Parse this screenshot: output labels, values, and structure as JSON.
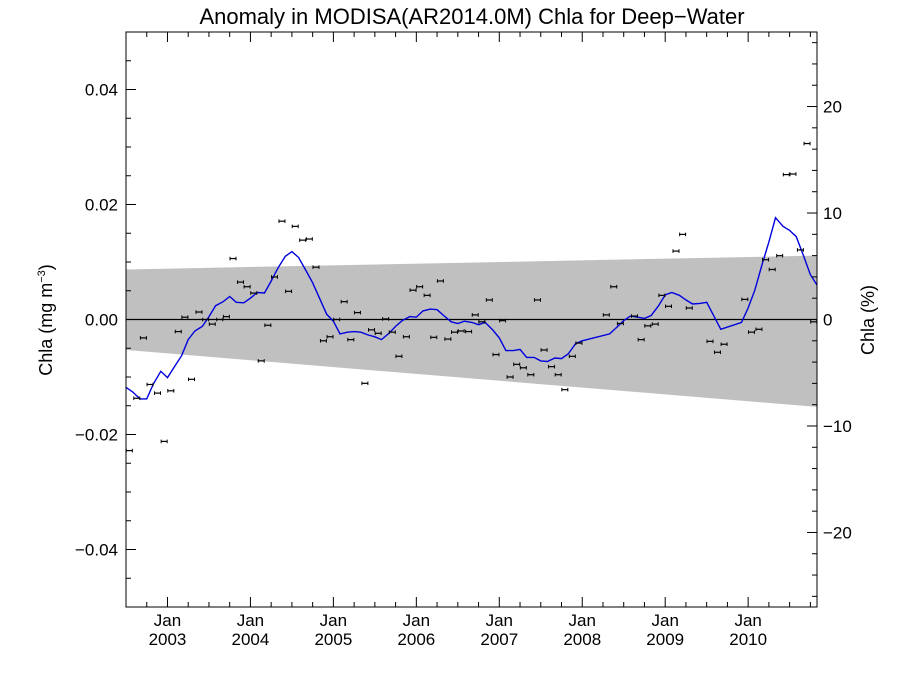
{
  "chart_data": {
    "type": "scatter",
    "title": "Anomaly in MODISA(AR2014.0M) Chla for Deep−Water",
    "ylabel_left": "Chla (mg m",
    "ylabel_left_sup": "−3",
    "ylabel_left_tail": ")",
    "ylabel_right": "Chla (%)",
    "xlim": [
      2002.5,
      2010.83
    ],
    "ylim": [
      -0.05,
      0.05
    ],
    "y2lim": [
      -27,
      27
    ],
    "x_ticks": [
      {
        "x": 2003.0,
        "month": "Jan",
        "year": "2003"
      },
      {
        "x": 2004.0,
        "month": "Jan",
        "year": "2004"
      },
      {
        "x": 2005.0,
        "month": "Jan",
        "year": "2005"
      },
      {
        "x": 2006.0,
        "month": "Jan",
        "year": "2006"
      },
      {
        "x": 2007.0,
        "month": "Jan",
        "year": "2007"
      },
      {
        "x": 2008.0,
        "month": "Jan",
        "year": "2008"
      },
      {
        "x": 2009.0,
        "month": "Jan",
        "year": "2009"
      },
      {
        "x": 2010.0,
        "month": "Jan",
        "year": "2010"
      }
    ],
    "y_ticks": [
      {
        "value": 0.04,
        "label": "0.04"
      },
      {
        "value": 0.02,
        "label": "0.02"
      },
      {
        "value": 0.0,
        "label": "0.00"
      },
      {
        "value": -0.02,
        "label": "−0.02"
      },
      {
        "value": -0.04,
        "label": "−0.04"
      }
    ],
    "y2_ticks": [
      {
        "value": 20,
        "label": "20"
      },
      {
        "value": 10,
        "label": "10"
      },
      {
        "value": 0,
        "label": "0"
      },
      {
        "value": -10,
        "label": "−10"
      },
      {
        "value": -20,
        "label": "−20"
      }
    ],
    "uncertainty_band": {
      "x": [
        2002.5,
        2010.83
      ],
      "upper": [
        0.0087,
        0.0111
      ],
      "lower": [
        -0.0053,
        -0.0152
      ],
      "color": "#c0c0c0"
    },
    "zero_line": 0.0,
    "series": [
      {
        "kind": "monthly_points",
        "color": "#000000",
        "x": [
          2002.54,
          2002.63,
          2002.71,
          2002.79,
          2002.88,
          2002.96,
          2003.04,
          2003.13,
          2003.21,
          2003.29,
          2003.38,
          2003.46,
          2003.54,
          2003.63,
          2003.71,
          2003.79,
          2003.88,
          2003.96,
          2004.04,
          2004.13,
          2004.21,
          2004.29,
          2004.38,
          2004.46,
          2004.54,
          2004.63,
          2004.71,
          2004.79,
          2004.88,
          2004.96,
          2005.04,
          2005.13,
          2005.21,
          2005.29,
          2005.38,
          2005.46,
          2005.54,
          2005.63,
          2005.71,
          2005.79,
          2005.88,
          2005.96,
          2006.04,
          2006.13,
          2006.21,
          2006.29,
          2006.38,
          2006.46,
          2006.54,
          2006.63,
          2006.71,
          2006.79,
          2006.88,
          2006.96,
          2007.04,
          2007.13,
          2007.21,
          2007.29,
          2007.38,
          2007.46,
          2007.54,
          2007.63,
          2007.71,
          2007.79,
          2007.88,
          2007.96,
          2008.29,
          2008.38,
          2008.46,
          2008.63,
          2008.71,
          2008.79,
          2008.88,
          2008.96,
          2009.04,
          2009.13,
          2009.21,
          2009.29,
          2009.54,
          2009.63,
          2009.71,
          2009.96,
          2010.04,
          2010.13,
          2010.21,
          2010.29,
          2010.38,
          2010.46,
          2010.54,
          2010.63,
          2010.71,
          2010.79
        ],
        "y": [
          -0.0228,
          -0.0137,
          -0.0032,
          -0.0113,
          -0.0128,
          -0.0212,
          -0.0124,
          -0.0021,
          0.0004,
          -0.0104,
          0.0013,
          0.0,
          -0.0008,
          0.0,
          0.0005,
          0.0106,
          0.0065,
          0.0057,
          0.0046,
          -0.0072,
          -0.001,
          0.0074,
          0.0171,
          0.0049,
          0.0162,
          0.0138,
          0.014,
          0.0091,
          -0.0037,
          -0.003,
          0.0,
          0.0031,
          -0.0035,
          0.0012,
          -0.0111,
          -0.0018,
          -0.0024,
          0.0001,
          -0.0022,
          -0.0064,
          -0.003,
          0.0051,
          0.0057,
          0.0042,
          -0.0031,
          0.0067,
          -0.0034,
          -0.0022,
          -0.002,
          -0.0021,
          0.0008,
          -0.0004,
          0.0034,
          -0.0061,
          -0.0002,
          -0.01,
          -0.0078,
          -0.0084,
          -0.0096,
          0.0034,
          -0.0053,
          -0.0082,
          -0.0096,
          -0.0122,
          -0.0064,
          -0.0041,
          0.0008,
          0.0057,
          -0.0007,
          0.0006,
          -0.0035,
          -0.0011,
          -0.0008,
          0.0042,
          0.0023,
          0.0119,
          0.0148,
          0.002,
          -0.0038,
          -0.0057,
          -0.0043,
          0.0035,
          -0.0022,
          -0.0017,
          0.0104,
          0.0087,
          0.0111,
          0.0252,
          0.0253,
          0.0121,
          0.0306,
          -0.0004
        ]
      },
      {
        "kind": "smoothed_line",
        "color": "#0000dd",
        "x": [
          2002.5,
          2002.58,
          2002.67,
          2002.75,
          2002.83,
          2002.92,
          2003.0,
          2003.08,
          2003.17,
          2003.25,
          2003.33,
          2003.42,
          2003.5,
          2003.58,
          2003.67,
          2003.75,
          2003.83,
          2003.92,
          2004.0,
          2004.08,
          2004.17,
          2004.25,
          2004.33,
          2004.42,
          2004.5,
          2004.58,
          2004.67,
          2004.75,
          2004.83,
          2004.92,
          2005.0,
          2005.08,
          2005.17,
          2005.25,
          2005.33,
          2005.42,
          2005.5,
          2005.58,
          2005.67,
          2005.75,
          2005.83,
          2005.92,
          2006.0,
          2006.08,
          2006.17,
          2006.25,
          2006.33,
          2006.42,
          2006.5,
          2006.58,
          2006.67,
          2006.75,
          2006.83,
          2006.92,
          2007.0,
          2007.08,
          2007.17,
          2007.25,
          2007.33,
          2007.42,
          2007.5,
          2007.58,
          2007.67,
          2007.75,
          2007.83,
          2007.92,
          2008.0,
          2008.33,
          2008.42,
          2008.5,
          2008.58,
          2008.67,
          2008.75,
          2008.83,
          2008.92,
          2009.0,
          2009.08,
          2009.17,
          2009.25,
          2009.33,
          2009.42,
          2009.5,
          2009.58,
          2009.67,
          2009.92,
          2010.0,
          2010.08,
          2010.17,
          2010.25,
          2010.33,
          2010.42,
          2010.5,
          2010.58,
          2010.67,
          2010.75,
          2010.83
        ],
        "y": [
          -0.0118,
          -0.0126,
          -0.0138,
          -0.0138,
          -0.0112,
          -0.009,
          -0.0101,
          -0.0083,
          -0.0063,
          -0.0035,
          -0.002,
          -0.0012,
          0.0005,
          0.0024,
          0.0031,
          0.004,
          0.003,
          0.0029,
          0.0037,
          0.0047,
          0.0046,
          0.0067,
          0.0089,
          0.011,
          0.0118,
          0.0108,
          0.0085,
          0.0064,
          0.0038,
          0.0009,
          -0.0003,
          -0.0025,
          -0.0022,
          -0.0021,
          -0.0022,
          -0.0027,
          -0.003,
          -0.0035,
          -0.0024,
          -0.0012,
          -0.0002,
          0.0005,
          0.0004,
          0.0015,
          0.0018,
          0.0017,
          0.0007,
          -0.0004,
          -0.0007,
          -0.0003,
          -0.0005,
          -0.0009,
          -0.0005,
          -0.0018,
          -0.0032,
          -0.0054,
          -0.0054,
          -0.0052,
          -0.0066,
          -0.0066,
          -0.0072,
          -0.0073,
          -0.0067,
          -0.0068,
          -0.006,
          -0.0042,
          -0.0037,
          -0.0025,
          -0.0013,
          -0.0002,
          0.0006,
          0.0004,
          0.0002,
          0.0007,
          0.0024,
          0.0043,
          0.0047,
          0.0042,
          0.0034,
          0.0027,
          0.0028,
          0.003,
          0.0008,
          -0.0017,
          -0.0005,
          0.002,
          0.0051,
          0.0097,
          0.0135,
          0.0177,
          0.0162,
          0.0155,
          0.0144,
          0.011,
          0.0078,
          0.006
        ]
      }
    ]
  },
  "colors": {
    "band": "#c0c0c0",
    "line": "#0000dd",
    "points": "#000000",
    "axes": "#000000"
  }
}
